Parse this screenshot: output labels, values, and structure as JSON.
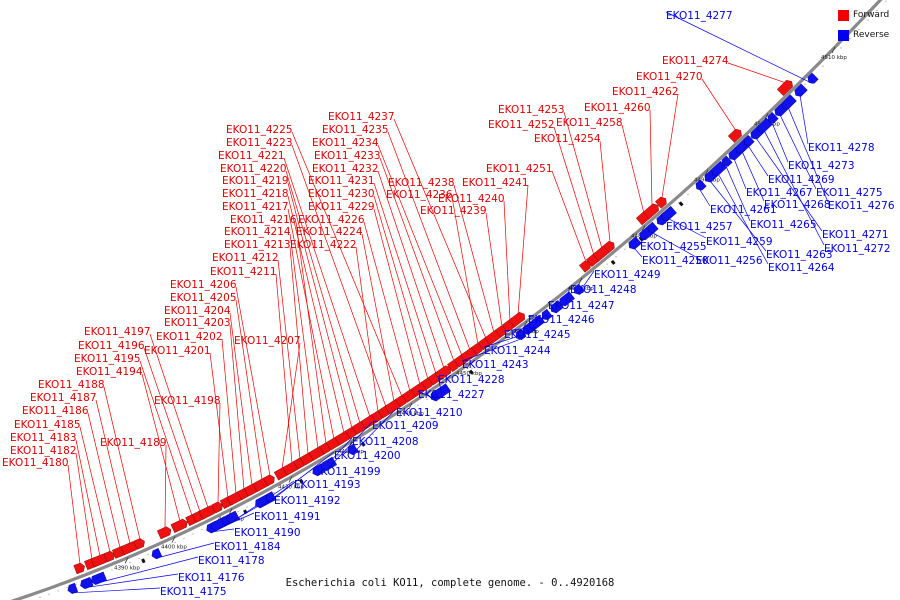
{
  "caption": "Escherichia coli KO11, complete genome. - 0..4920168",
  "legend": {
    "forward": {
      "label": "Forward",
      "color": "#ee0000"
    },
    "reverse": {
      "label": "Reverse",
      "color": "#0000ee"
    }
  },
  "ticks": [
    "4390 kbp",
    "4400 kbp",
    "4410 kbp",
    "4420 kbp",
    "4430 kbp",
    "4440 kbp",
    "4450 kbp",
    "4460 kbp",
    "4470 kbp",
    "4480 kbp",
    "4490 kbp",
    "4500 kbp",
    "4510 kbp"
  ],
  "forward_genes": [
    "EKO11_4180",
    "EKO11_4182",
    "EKO11_4183",
    "EKO11_4185",
    "EKO11_4186",
    "EKO11_4187",
    "EKO11_4188",
    "EKO11_4189",
    "EKO11_4194",
    "EKO11_4195",
    "EKO11_4196",
    "EKO11_4197",
    "EKO11_4198",
    "EKO11_4201",
    "EKO11_4202",
    "EKO11_4203",
    "EKO11_4204",
    "EKO11_4205",
    "EKO11_4206",
    "EKO11_4207",
    "EKO11_4211",
    "EKO11_4212",
    "EKO11_4213",
    "EKO11_4214",
    "EKO11_4216",
    "EKO11_4217",
    "EKO11_4218",
    "EKO11_4219",
    "EKO11_4220",
    "EKO11_4221",
    "EKO11_4222",
    "EKO11_4223",
    "EKO11_4224",
    "EKO11_4225",
    "EKO11_4226",
    "EKO11_4229",
    "EKO11_4230",
    "EKO11_4231",
    "EKO11_4232",
    "EKO11_4233",
    "EKO11_4234",
    "EKO11_4235",
    "EKO11_4236",
    "EKO11_4237",
    "EKO11_4238",
    "EKO11_4239",
    "EKO11_4240",
    "EKO11_4241",
    "EKO11_4251",
    "EKO11_4252",
    "EKO11_4253",
    "EKO11_4254",
    "EKO11_4258",
    "EKO11_4260",
    "EKO11_4262",
    "EKO11_4270",
    "EKO11_4274"
  ],
  "reverse_genes": [
    "EKO11_4175",
    "EKO11_4176",
    "EKO11_4178",
    "EKO11_4184",
    "EKO11_4190",
    "EKO11_4191",
    "EKO11_4192",
    "EKO11_4193",
    "EKO11_4199",
    "EKO11_4200",
    "EKO11_4208",
    "EKO11_4209",
    "EKO11_4210",
    "EKO11_4227",
    "EKO11_4228",
    "EKO11_4243",
    "EKO11_4244",
    "EKO11_4245",
    "EKO11_4246",
    "EKO11_4247",
    "EKO11_4248",
    "EKO11_4249",
    "EKO11_4250",
    "EKO11_4255",
    "EKO11_4256",
    "EKO11_4257",
    "EKO11_4259",
    "EKO11_4261",
    "EKO11_4263",
    "EKO11_4264",
    "EKO11_4265",
    "EKO11_4267",
    "EKO11_4268",
    "EKO11_4269",
    "EKO11_4271",
    "EKO11_4272",
    "EKO11_4273",
    "EKO11_4275",
    "EKO11_4276",
    "EKO11_4277",
    "EKO11_4278"
  ]
}
